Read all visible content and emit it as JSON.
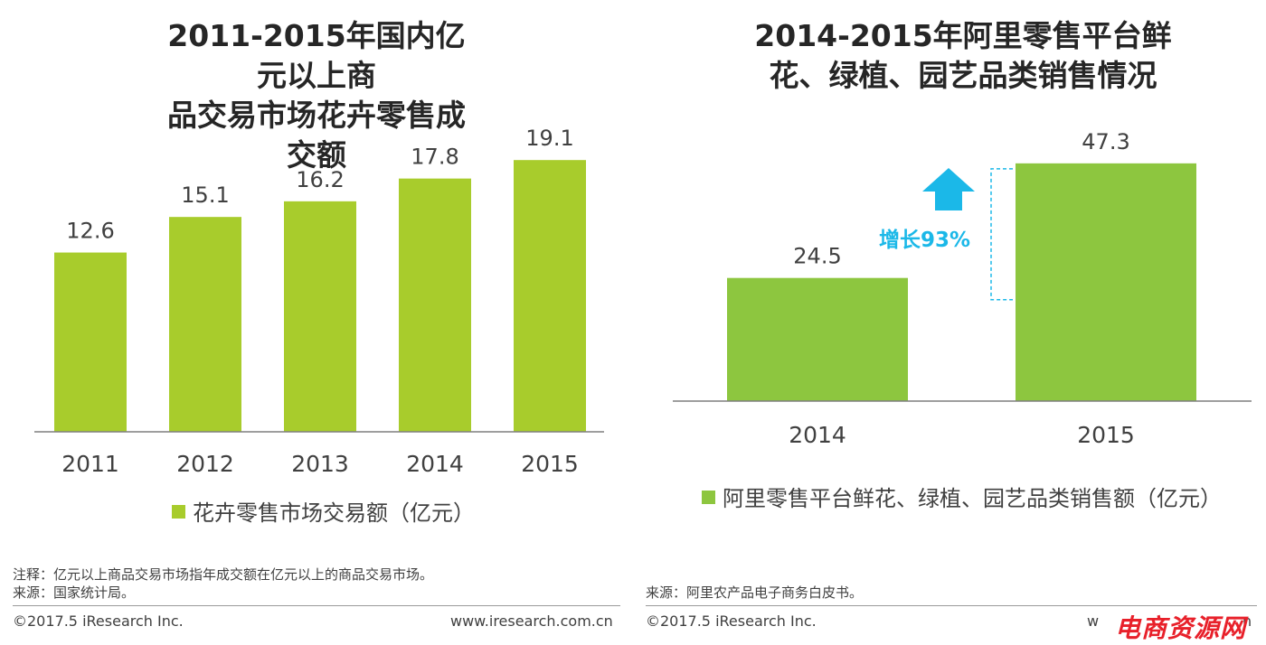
{
  "colors": {
    "left_bar": "#a8cc2c",
    "right_bar": "#8dc63f",
    "growth_accent": "#1bb8e8",
    "axis": "#7f7f7f",
    "watermark": "#e8202a"
  },
  "chart_data": [
    {
      "type": "bar",
      "title_lines": [
        "2011-2015年国内亿元以上商",
        "品交易市场花卉零售成交额"
      ],
      "categories": [
        "2011",
        "2012",
        "2013",
        "2014",
        "2015"
      ],
      "values": [
        12.6,
        15.1,
        16.2,
        17.8,
        19.1
      ],
      "value_labels": [
        "12.6",
        "15.1",
        "16.2",
        "17.8",
        "19.1"
      ],
      "legend": "花卉零售市场交易额（亿元）",
      "ylim": [
        0,
        24
      ],
      "grid": false
    },
    {
      "type": "bar",
      "title_lines": [
        "2014-2015年阿里零售平台鲜",
        "花、绿植、园艺品类销售情况"
      ],
      "categories": [
        "2014",
        "2015"
      ],
      "values": [
        24.5,
        47.3
      ],
      "value_labels": [
        "24.5",
        "47.3"
      ],
      "legend": "阿里零售平台鲜花、绿植、园艺品类销售额（亿元）",
      "annotation": "增长93%",
      "ylim": [
        0,
        55
      ],
      "grid": false
    }
  ],
  "notes": {
    "left": [
      "注释：亿元以上商品交易市场指年成交额在亿元以上的商品交易市场。",
      "来源：国家统计局。"
    ],
    "right": [
      "来源：阿里农产品电子商务白皮书。"
    ]
  },
  "footer": {
    "copyright": "©2017.5 iResearch Inc.",
    "website": "www.iresearch.com.cn",
    "website_partial": "w",
    "website_tail": "n",
    "watermark": "电商资源网"
  }
}
